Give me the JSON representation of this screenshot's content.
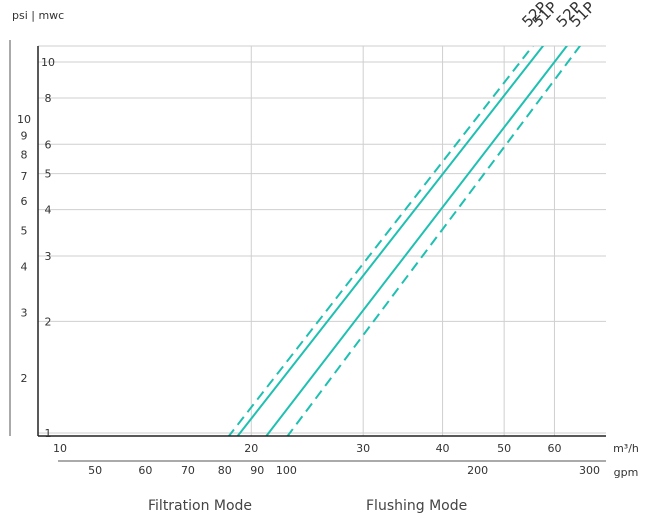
{
  "chart_data": {
    "type": "line",
    "ylabel": "psi | mwc",
    "x_primary_unit": "m³/h",
    "x_secondary_unit": "gpm",
    "x_scale": "log",
    "y_scale": "log",
    "xlim_m3h": [
      10,
      70
    ],
    "ylim_mwc": [
      1,
      10
    ],
    "x_ticks_m3h": [
      10,
      20,
      30,
      40,
      50,
      60
    ],
    "x_ticks_gpm": [
      50,
      60,
      70,
      80,
      90,
      100,
      200,
      300
    ],
    "y_ticks_mwc": [
      1,
      2,
      3,
      4,
      5,
      6,
      8,
      10
    ],
    "y_ticks_psi": [
      2,
      3,
      4,
      5,
      6,
      7,
      8,
      9,
      10
    ],
    "series": [
      {
        "name": "52P",
        "mode": "Filtration Mode",
        "style": "dashed",
        "points": [
          [
            18.6,
            1
          ],
          [
            53,
            10
          ]
        ]
      },
      {
        "name": "51P",
        "mode": "Filtration Mode",
        "style": "solid",
        "points": [
          [
            19.2,
            1
          ],
          [
            55,
            10
          ]
        ]
      },
      {
        "name": "52P",
        "mode": "Flushing Mode",
        "style": "solid",
        "points": [
          [
            21.3,
            1
          ],
          [
            60,
            10
          ]
        ]
      },
      {
        "name": "51P",
        "mode": "Flushing Mode",
        "style": "dashed",
        "points": [
          [
            23,
            1
          ],
          [
            63,
            10
          ]
        ]
      }
    ],
    "line_color": "#1fc0b2",
    "grid": true,
    "captions": [
      "Filtration Mode",
      "Flushing Mode"
    ]
  }
}
